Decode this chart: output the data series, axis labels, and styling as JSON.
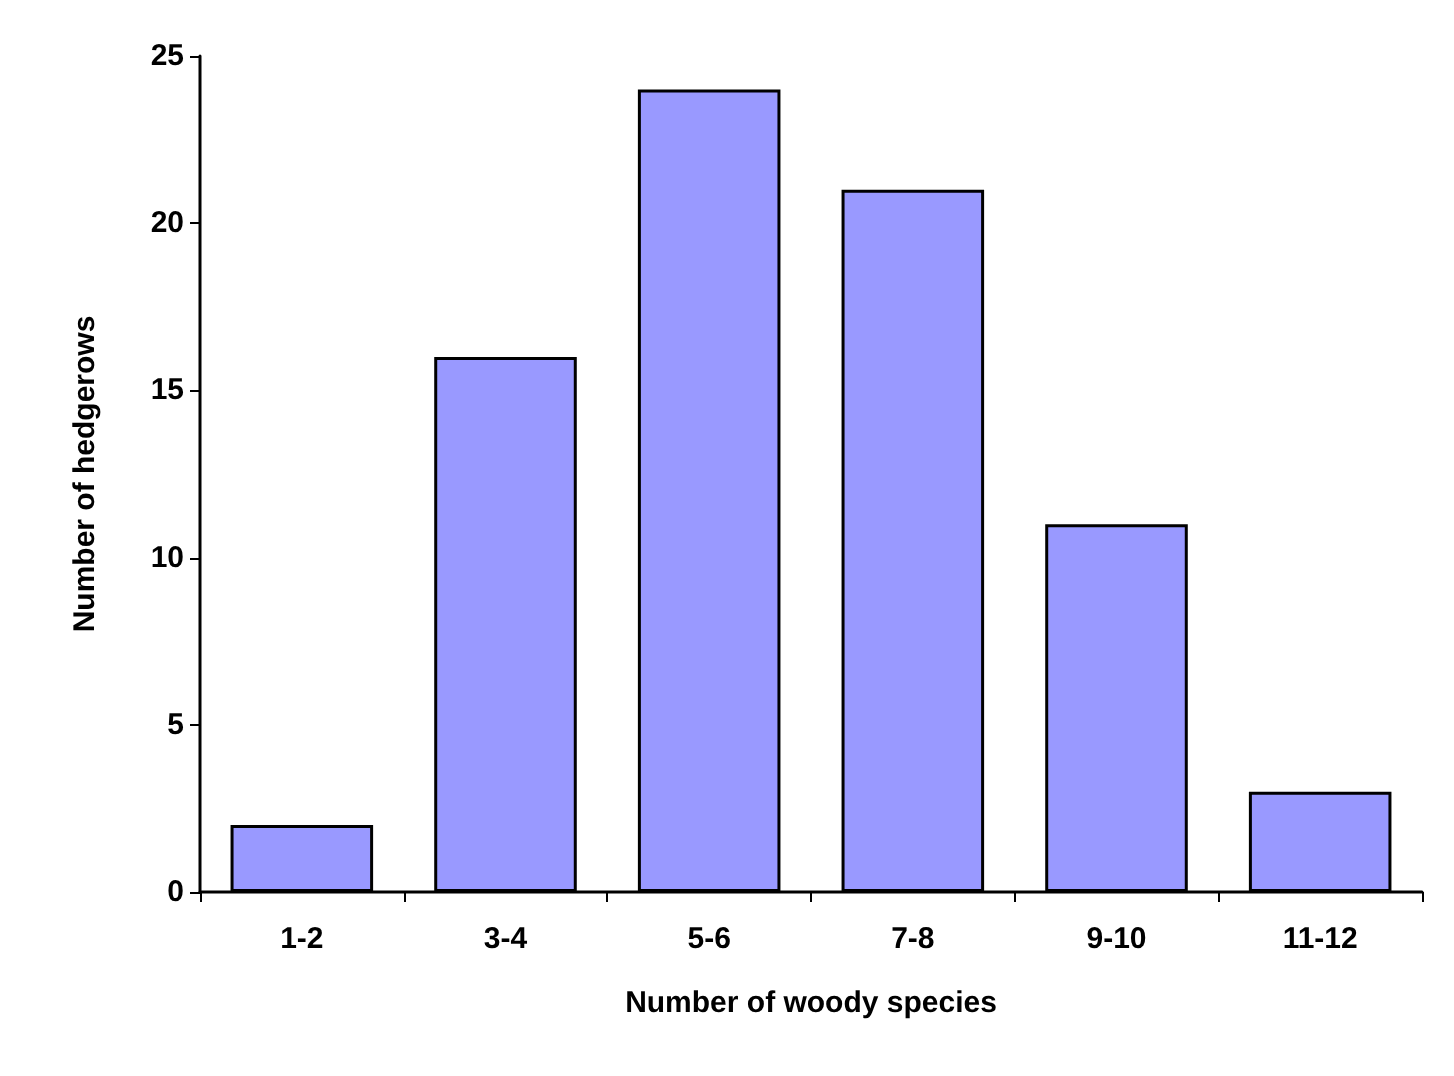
{
  "chart_data": {
    "type": "bar",
    "xlabel": "Number of woody species",
    "ylabel": "Number of hedgerows",
    "categories": [
      "1-2",
      "3-4",
      "5-6",
      "7-8",
      "9-10",
      "11-12"
    ],
    "values": [
      2,
      16,
      24,
      21,
      11,
      3
    ],
    "color": "#9999ff",
    "ylim": [
      0,
      25
    ],
    "yticks": [
      0,
      5,
      10,
      15,
      20,
      25
    ],
    "grid": false
  }
}
